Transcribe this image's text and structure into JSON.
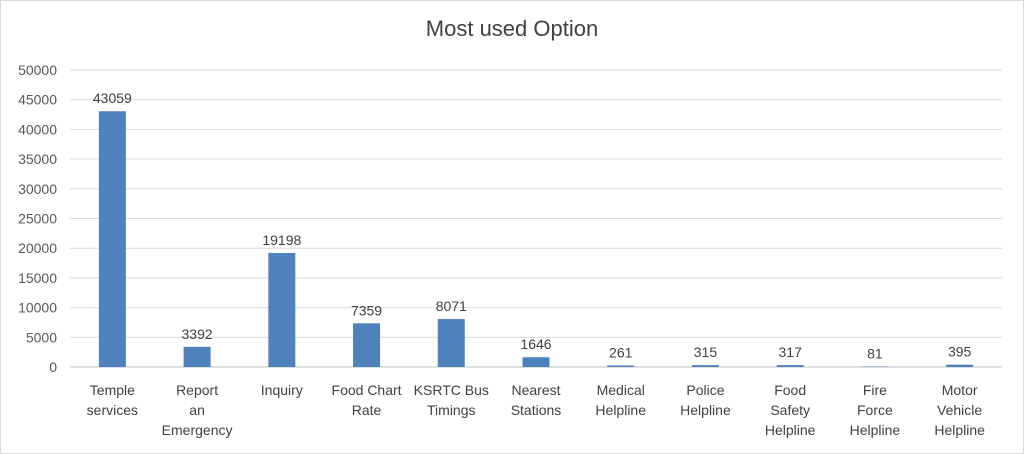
{
  "chart_data": {
    "type": "bar",
    "title": "Most used Option",
    "categories": [
      "Temple services",
      "Report an Emergency",
      "Inquiry",
      "Food Chart Rate",
      "KSRTC Bus Timings",
      "Nearest Stations",
      "Medical Helpline",
      "Police Helpline",
      "Food Safety Helpline",
      "Fire Force Helpline",
      "Motor Vehicle Helpline"
    ],
    "values": [
      43059,
      3392,
      19198,
      7359,
      8071,
      1646,
      261,
      315,
      317,
      81,
      395
    ],
    "ylim": [
      0,
      50000
    ],
    "yticks": [
      0,
      5000,
      10000,
      15000,
      20000,
      25000,
      30000,
      35000,
      40000,
      45000,
      50000
    ],
    "grid": true,
    "legend": "none",
    "bar_color": "#4f81bd"
  }
}
